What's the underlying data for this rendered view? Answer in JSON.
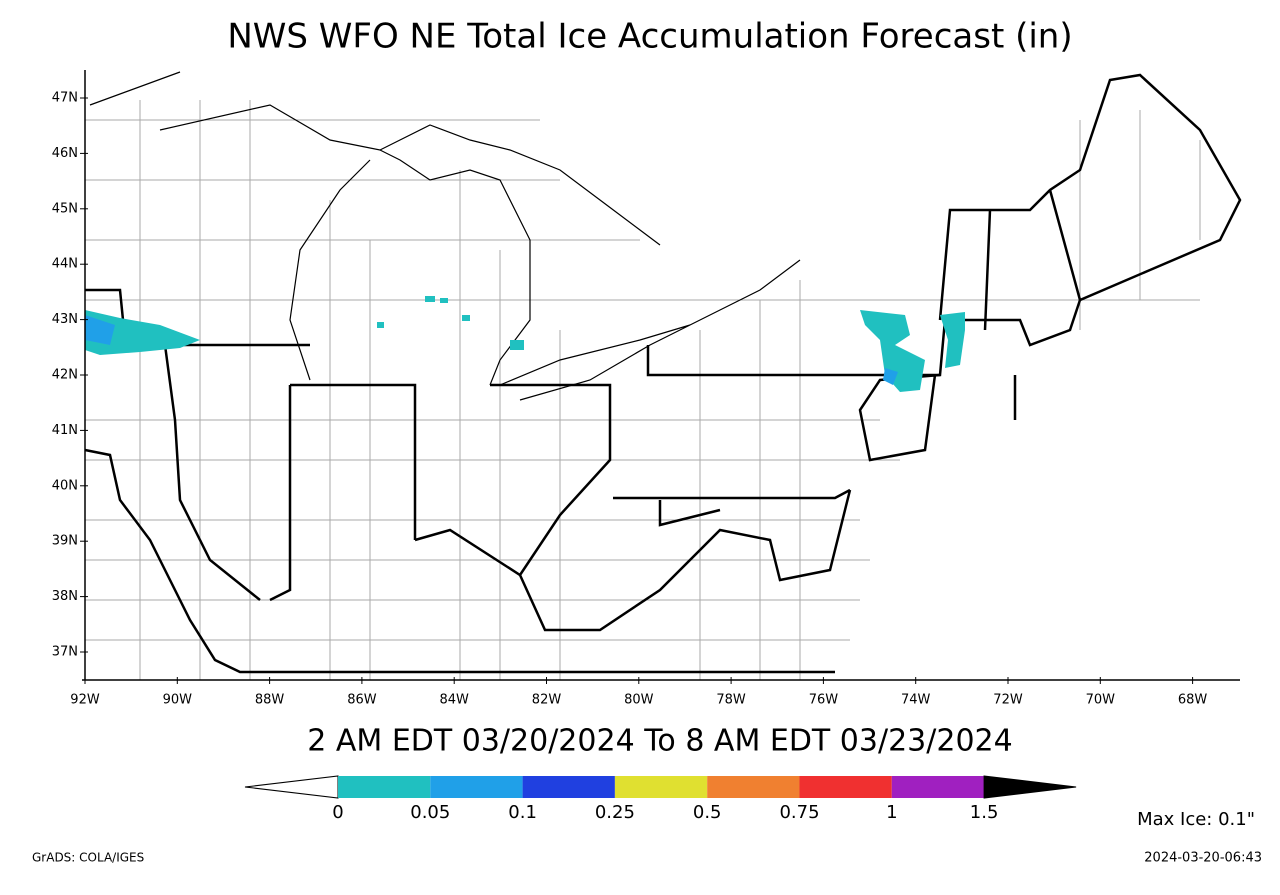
{
  "title": "NWS WFO NE Total Ice Accumulation Forecast (in)",
  "lat_labels": [
    "47N",
    "46N",
    "45N",
    "44N",
    "43N",
    "42N",
    "41N",
    "40N",
    "39N",
    "38N",
    "37N"
  ],
  "lon_labels": [
    "92W",
    "90W",
    "88W",
    "86W",
    "84W",
    "82W",
    "80W",
    "78W",
    "76W",
    "74W",
    "72W",
    "70W",
    "68W"
  ],
  "period": "2 AM EDT 03/20/2024 To 8 AM EDT 03/23/2024",
  "colorbar": {
    "labels": [
      "0",
      "0.05",
      "0.1",
      "0.25",
      "0.5",
      "0.75",
      "1",
      "1.5"
    ],
    "colors": [
      "#ffffff",
      "#20c0c0",
      "#20a0e8",
      "#2040e0",
      "#e0e030",
      "#f08030",
      "#f03030",
      "#a020c0",
      "#000000"
    ]
  },
  "max_ice": "Max Ice: 0.1\"",
  "credit": "GrADS: COLA/IGES",
  "timestamp": "2024-03-20-06:43"
}
